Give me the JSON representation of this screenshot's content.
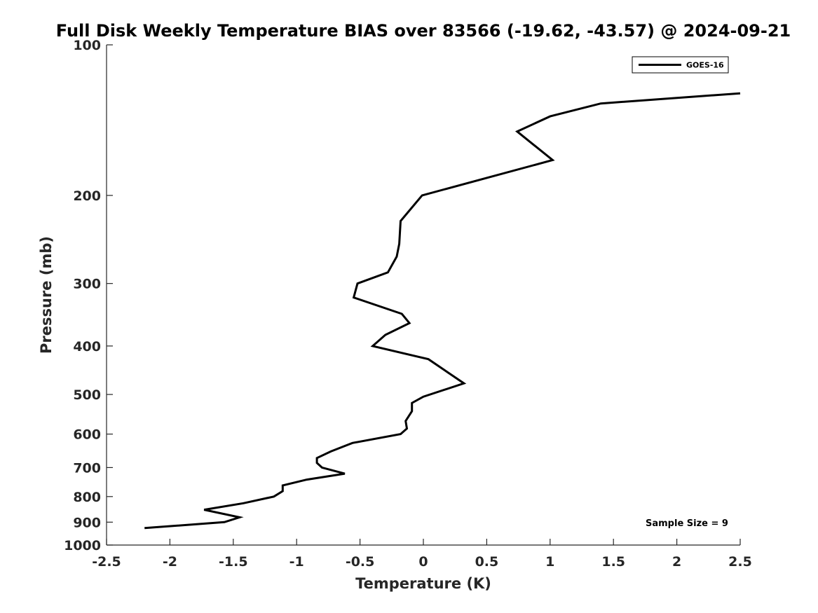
{
  "chart_data": {
    "type": "line",
    "title": "Full Disk Weekly Temperature BIAS over 83566 (-19.62, -43.57) @ 2024-09-21",
    "xlabel": "Temperature (K)",
    "ylabel": "Pressure (mb)",
    "xlim": [
      -2.5,
      2.5
    ],
    "ylim": [
      100,
      1000
    ],
    "y_scale": "log",
    "y_reversed": true,
    "x_ticks": [
      "-2.5",
      "-2",
      "-1.5",
      "-1",
      "-0.5",
      "0",
      "0.5",
      "1",
      "1.5",
      "2",
      "2.5"
    ],
    "x_tick_values": [
      -2.5,
      -2,
      -1.5,
      -1,
      -0.5,
      0,
      0.5,
      1,
      1.5,
      2,
      2.5
    ],
    "y_ticks": [
      "100",
      "200",
      "300",
      "400",
      "500",
      "600",
      "700",
      "800",
      "900",
      "1000"
    ],
    "y_tick_values": [
      100,
      200,
      300,
      400,
      500,
      600,
      700,
      800,
      900,
      1000
    ],
    "grid": false,
    "legend_position": "top-right",
    "annotation": "Sample Size = 9",
    "series": [
      {
        "name": "GOES-16",
        "color": "#000000",
        "points": [
          {
            "x": 2.5,
            "y": 125
          },
          {
            "x": 1.4,
            "y": 131
          },
          {
            "x": 1.0,
            "y": 139
          },
          {
            "x": 0.74,
            "y": 149
          },
          {
            "x": 1.02,
            "y": 170
          },
          {
            "x": -0.01,
            "y": 200
          },
          {
            "x": -0.18,
            "y": 225
          },
          {
            "x": -0.19,
            "y": 250
          },
          {
            "x": -0.21,
            "y": 265
          },
          {
            "x": -0.28,
            "y": 285
          },
          {
            "x": -0.52,
            "y": 300
          },
          {
            "x": -0.55,
            "y": 320
          },
          {
            "x": -0.17,
            "y": 345
          },
          {
            "x": -0.11,
            "y": 360
          },
          {
            "x": -0.3,
            "y": 380
          },
          {
            "x": -0.4,
            "y": 400
          },
          {
            "x": 0.04,
            "y": 425
          },
          {
            "x": 0.32,
            "y": 475
          },
          {
            "x": 0.0,
            "y": 505
          },
          {
            "x": -0.09,
            "y": 520
          },
          {
            "x": -0.09,
            "y": 540
          },
          {
            "x": -0.14,
            "y": 565
          },
          {
            "x": -0.13,
            "y": 585
          },
          {
            "x": -0.18,
            "y": 600
          },
          {
            "x": -0.56,
            "y": 625
          },
          {
            "x": -0.73,
            "y": 650
          },
          {
            "x": -0.84,
            "y": 670
          },
          {
            "x": -0.84,
            "y": 685
          },
          {
            "x": -0.8,
            "y": 700
          },
          {
            "x": -0.62,
            "y": 720
          },
          {
            "x": -0.92,
            "y": 740
          },
          {
            "x": -1.11,
            "y": 760
          },
          {
            "x": -1.11,
            "y": 780
          },
          {
            "x": -1.18,
            "y": 800
          },
          {
            "x": -1.42,
            "y": 825
          },
          {
            "x": -1.73,
            "y": 850
          },
          {
            "x": -1.45,
            "y": 880
          },
          {
            "x": -1.57,
            "y": 900
          },
          {
            "x": -2.2,
            "y": 925
          }
        ]
      }
    ]
  }
}
